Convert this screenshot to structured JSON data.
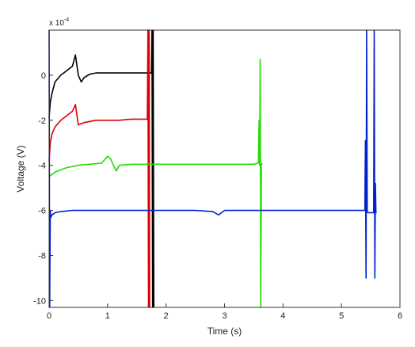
{
  "chart_data": {
    "type": "line",
    "xlabel": "Time (s)",
    "ylabel": "Voltage (V)",
    "y_multiplier_base": "x 10",
    "y_multiplier_exp": "-4",
    "xlim": [
      0,
      6
    ],
    "ylim": [
      -10.3,
      2.0
    ],
    "x_ticks": [
      0,
      1,
      2,
      3,
      4,
      5,
      6
    ],
    "x_tick_labels": [
      "0",
      "1",
      "2",
      "3",
      "4",
      "5",
      "6"
    ],
    "y_ticks": [
      0,
      -2,
      -4,
      -6,
      -8,
      -10
    ],
    "y_tick_labels": [
      "0",
      "-2",
      "-4",
      "-6",
      "-8",
      "-10"
    ],
    "grid": false,
    "series": [
      {
        "color": "#000000",
        "x": [
          0.0,
          0.02,
          0.05,
          0.1,
          0.2,
          0.3,
          0.4,
          0.45,
          0.5,
          0.55,
          0.6,
          0.7,
          0.8,
          1.0,
          1.2,
          1.4,
          1.6,
          1.75,
          1.76,
          1.77,
          1.78,
          1.79
        ],
        "y": [
          -1.9,
          -1.2,
          -0.8,
          -0.3,
          0.0,
          0.2,
          0.4,
          0.9,
          0.0,
          -0.3,
          -0.1,
          0.05,
          0.1,
          0.1,
          0.1,
          0.1,
          0.1,
          0.1,
          2.0,
          -10.3,
          2.0,
          -10.3
        ]
      },
      {
        "color": "#dd0000",
        "x": [
          0.0,
          0.02,
          0.05,
          0.1,
          0.2,
          0.3,
          0.4,
          0.45,
          0.5,
          0.6,
          0.8,
          1.0,
          1.2,
          1.4,
          1.5,
          1.68,
          1.69,
          1.7,
          1.71,
          1.72
        ],
        "y": [
          -3.8,
          -3.0,
          -2.6,
          -2.3,
          -2.0,
          -1.8,
          -1.6,
          -1.3,
          -2.2,
          -2.1,
          -2.0,
          -2.0,
          -2.0,
          -1.95,
          -1.95,
          -1.95,
          2.0,
          -10.3,
          2.0,
          -10.3
        ]
      },
      {
        "color": "#22dd00",
        "x": [
          0.0,
          0.05,
          0.1,
          0.2,
          0.3,
          0.5,
          0.7,
          0.9,
          1.0,
          1.05,
          1.1,
          1.15,
          1.2,
          1.4,
          1.6,
          2.0,
          2.5,
          3.0,
          3.5,
          3.58,
          3.59,
          3.6,
          3.61,
          3.62,
          3.63,
          3.64
        ],
        "y": [
          -4.5,
          -4.4,
          -4.3,
          -4.2,
          -4.1,
          -4.0,
          -3.95,
          -3.9,
          -3.6,
          -3.7,
          -4.0,
          -4.25,
          -4.0,
          -3.95,
          -3.95,
          -3.95,
          -3.95,
          -3.95,
          -3.95,
          -3.9,
          -2.0,
          -4.0,
          0.7,
          -10.3,
          -4.0,
          -3.9
        ]
      },
      {
        "color": "#0022cc",
        "x": [
          0.0,
          0.01,
          0.02,
          0.03,
          0.05,
          0.1,
          0.2,
          0.4,
          0.6,
          0.8,
          1.0,
          1.5,
          2.0,
          2.5,
          2.8,
          2.9,
          3.0,
          3.5,
          4.0,
          4.5,
          5.0,
          5.3,
          5.4,
          5.41,
          5.42,
          5.43,
          5.44,
          5.45,
          5.46,
          5.5,
          5.55,
          5.56,
          5.57,
          5.58,
          5.59,
          5.6
        ],
        "y": [
          2.0,
          -10.3,
          -6.0,
          -6.3,
          -6.2,
          -6.1,
          -6.05,
          -6.0,
          -6.0,
          -6.0,
          -6.0,
          -6.0,
          -6.0,
          -6.0,
          -6.05,
          -6.2,
          -6.0,
          -6.0,
          -6.0,
          -6.0,
          -6.0,
          -6.0,
          -6.0,
          -2.9,
          -9.0,
          2.0,
          -6.0,
          -6.1,
          -6.1,
          -6.1,
          -6.1,
          2.0,
          -9.0,
          -4.8,
          -6.1,
          -6.1
        ]
      }
    ]
  }
}
